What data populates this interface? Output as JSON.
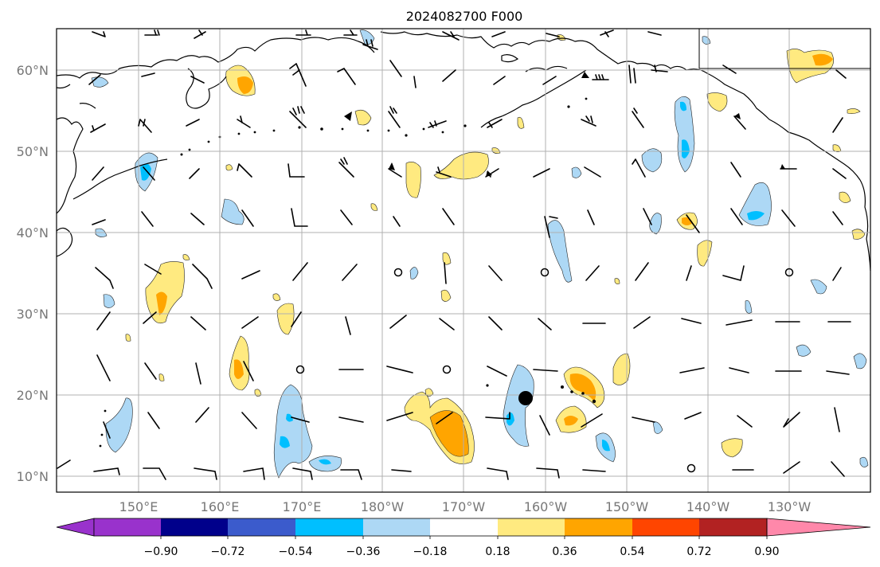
{
  "title": "2024082700 F000",
  "lat_labels": [
    "60°N",
    "50°N",
    "40°N",
    "30°N",
    "20°N",
    "10°N"
  ],
  "lon_labels": [
    "150°E",
    "160°E",
    "170°E",
    "180°W",
    "170°W",
    "160°W",
    "150°W",
    "140°W",
    "130°W"
  ],
  "colorbar": {
    "colors": [
      "#9932cc",
      "#00008b",
      "#3b5bcc",
      "#00bfff",
      "#add8f5",
      "#ffffff",
      "#ffea80",
      "#ffa500",
      "#ff4500",
      "#b22222",
      "#ff88aa"
    ],
    "tick_labels": [
      "−0.90",
      "−0.72",
      "−0.54",
      "−0.36",
      "−0.18",
      "0.18",
      "0.36",
      "0.54",
      "0.72",
      "0.90"
    ]
  },
  "legend_colors": {
    "positive_light": "#ffea80",
    "positive_mid": "#ffa500",
    "negative_light": "#add8f5",
    "negative_mid": "#00bfff"
  }
}
